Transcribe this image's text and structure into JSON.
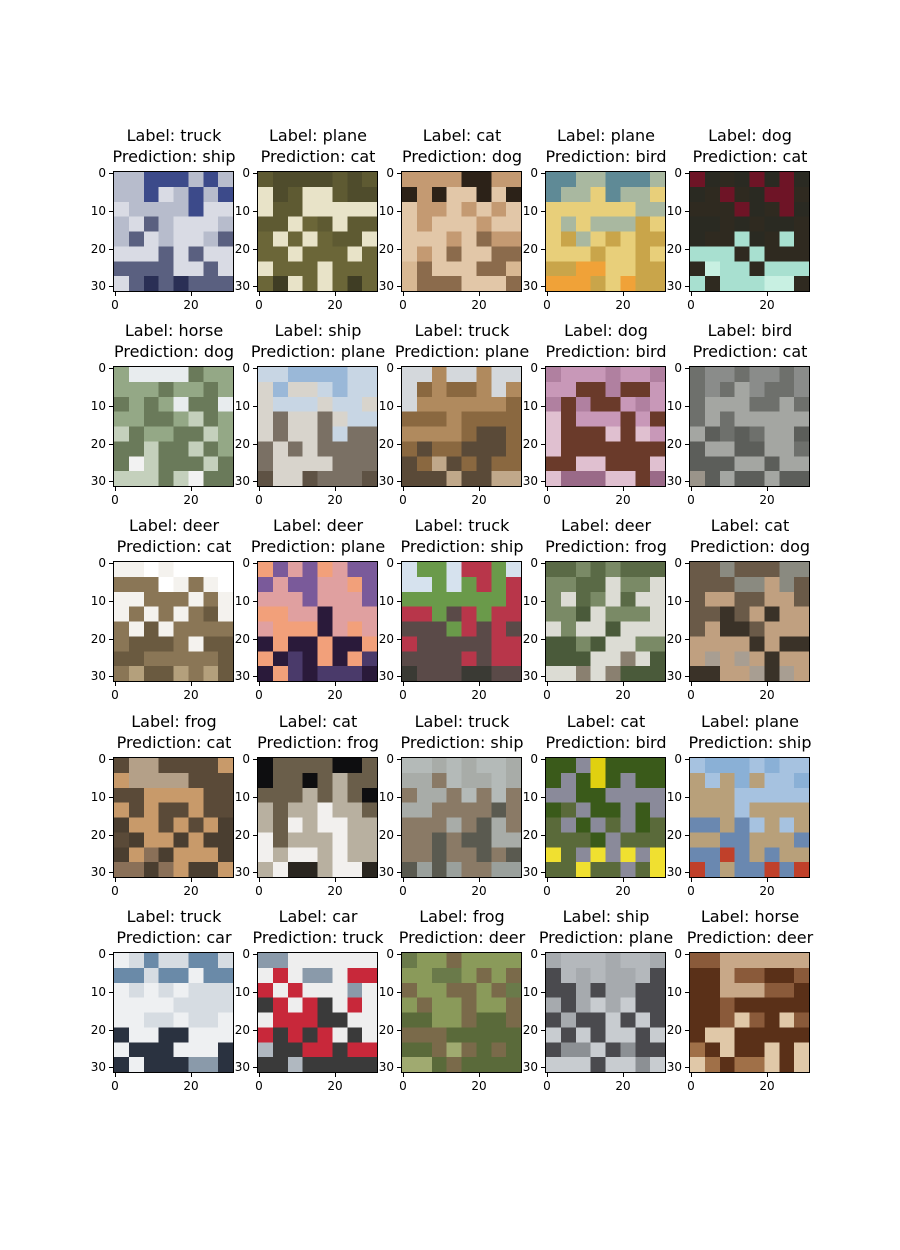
{
  "chart_data": {
    "type": "image-grid",
    "rows": 5,
    "cols": 5,
    "x_ticks": [
      "0",
      "20"
    ],
    "y_ticks": [
      "0",
      "10",
      "20",
      "30"
    ],
    "panels": [
      {
        "label": "Label: truck",
        "prediction": "Prediction: ship",
        "colors": [
          "#3c4a8a",
          "#b7bccc",
          "#d9dbe4",
          "#5a6080",
          "#2a2f55"
        ]
      },
      {
        "label": "Label: plane",
        "prediction": "Prediction: cat",
        "colors": [
          "#4f4c2c",
          "#5e5a32",
          "#e8e3c8",
          "#6b6638",
          "#3f3d24"
        ]
      },
      {
        "label": "Label: cat",
        "prediction": "Prediction: dog",
        "colors": [
          "#2c2218",
          "#c49a72",
          "#e2c7a8",
          "#8b6b4c",
          "#d8b893"
        ]
      },
      {
        "label": "Label: plane",
        "prediction": "Prediction: bird",
        "colors": [
          "#5f8a96",
          "#a9b8a0",
          "#e8cf7a",
          "#c9a54a",
          "#f0a238"
        ]
      },
      {
        "label": "Label: dog",
        "prediction": "Prediction: cat",
        "colors": [
          "#6e1426",
          "#2a2a22",
          "#2f2a20",
          "#a8e0d0",
          "#c8f0e2"
        ]
      },
      {
        "label": "Label: horse",
        "prediction": "Prediction: dog",
        "colors": [
          "#e8ecee",
          "#94a886",
          "#6a7a5a",
          "#c4d0bc",
          "#f2f2f2"
        ]
      },
      {
        "label": "Label: ship",
        "prediction": "Prediction: plane",
        "colors": [
          "#9ab8d8",
          "#c8d6e4",
          "#d8d4cc",
          "#7a7064",
          "#5e5244"
        ]
      },
      {
        "label": "Label: truck",
        "prediction": "Prediction: plane",
        "colors": [
          "#d4d8dc",
          "#b08a5e",
          "#8a6840",
          "#5a4a38",
          "#c0a88a"
        ]
      },
      {
        "label": "Label: dog",
        "prediction": "Prediction: bird",
        "colors": [
          "#b080a0",
          "#c898b8",
          "#6a3a2a",
          "#e0c0d0",
          "#9a6a88"
        ]
      },
      {
        "label": "Label: bird",
        "prediction": "Prediction: cat",
        "colors": [
          "#8a8c8a",
          "#6e706c",
          "#a4a6a2",
          "#5c5e5a",
          "#9a948a"
        ]
      },
      {
        "label": "Label: deer",
        "prediction": "Prediction: cat",
        "colors": [
          "#ffffff",
          "#f4f2ee",
          "#8a7656",
          "#6a5a40",
          "#b4a07c"
        ]
      },
      {
        "label": "Label: deer",
        "prediction": "Prediction: plane",
        "colors": [
          "#7a5a9a",
          "#e0a0a0",
          "#f2a07a",
          "#2a1a3a",
          "#4a3a6a"
        ]
      },
      {
        "label": "Label: truck",
        "prediction": "Prediction: ship",
        "colors": [
          "#d6e2ee",
          "#6a9a4a",
          "#b8364a",
          "#5a4a48",
          "#3a3a34"
        ]
      },
      {
        "label": "Label: deer",
        "prediction": "Prediction: frog",
        "colors": [
          "#5a6a46",
          "#7a8a66",
          "#dcdcd4",
          "#4a5a3a",
          "#8a8070"
        ]
      },
      {
        "label": "Label: cat",
        "prediction": "Prediction: dog",
        "colors": [
          "#8a8a80",
          "#6a5a48",
          "#c0a080",
          "#3a3228",
          "#a89e92"
        ]
      },
      {
        "label": "Label: frog",
        "prediction": "Prediction: cat",
        "colors": [
          "#b4a088",
          "#5a4a38",
          "#c89a6a",
          "#4a3e30",
          "#8a7058"
        ]
      },
      {
        "label": "Label: cat",
        "prediction": "Prediction: frog",
        "colors": [
          "#0e0e10",
          "#6a5e4a",
          "#b8b0a0",
          "#f2f0ee",
          "#2a2620"
        ]
      },
      {
        "label": "Label: truck",
        "prediction": "Prediction: ship",
        "colors": [
          "#b4bab8",
          "#a8aca8",
          "#8a7a66",
          "#5a5a50",
          "#9aa09c"
        ]
      },
      {
        "label": "Label: cat",
        "prediction": "Prediction: bird",
        "colors": [
          "#e0d010",
          "#3a5a1a",
          "#8a8a9a",
          "#5a6a3a",
          "#f0e030"
        ]
      },
      {
        "label": "Label: plane",
        "prediction": "Prediction: ship",
        "colors": [
          "#8ab0d6",
          "#a6c2e0",
          "#b8a07a",
          "#6a88b0",
          "#c0402a"
        ]
      },
      {
        "label": "Label: truck",
        "prediction": "Prediction: car",
        "colors": [
          "#6a8aa8",
          "#d6dce2",
          "#eef0f2",
          "#2a3240",
          "#8a9aaa"
        ]
      },
      {
        "label": "Label: car",
        "prediction": "Prediction: truck",
        "colors": [
          "#8a9aaa",
          "#eeeeee",
          "#c8283a",
          "#3a3a3a",
          "#b0b8c0"
        ]
      },
      {
        "label": "Label: frog",
        "prediction": "Prediction: deer",
        "colors": [
          "#6a7a4a",
          "#8a9a5a",
          "#7a6a4a",
          "#5a6a3a",
          "#a0aa70"
        ]
      },
      {
        "label": "Label: ship",
        "prediction": "Prediction: plane",
        "colors": [
          "#b4b8bc",
          "#a6aaae",
          "#4a4a4e",
          "#c8ccd0",
          "#8c9094"
        ]
      },
      {
        "label": "Label: horse",
        "prediction": "Prediction: deer",
        "colors": [
          "#c8a888",
          "#8a5a3a",
          "#5a3018",
          "#e0c8a8",
          "#a07048"
        ]
      }
    ]
  }
}
